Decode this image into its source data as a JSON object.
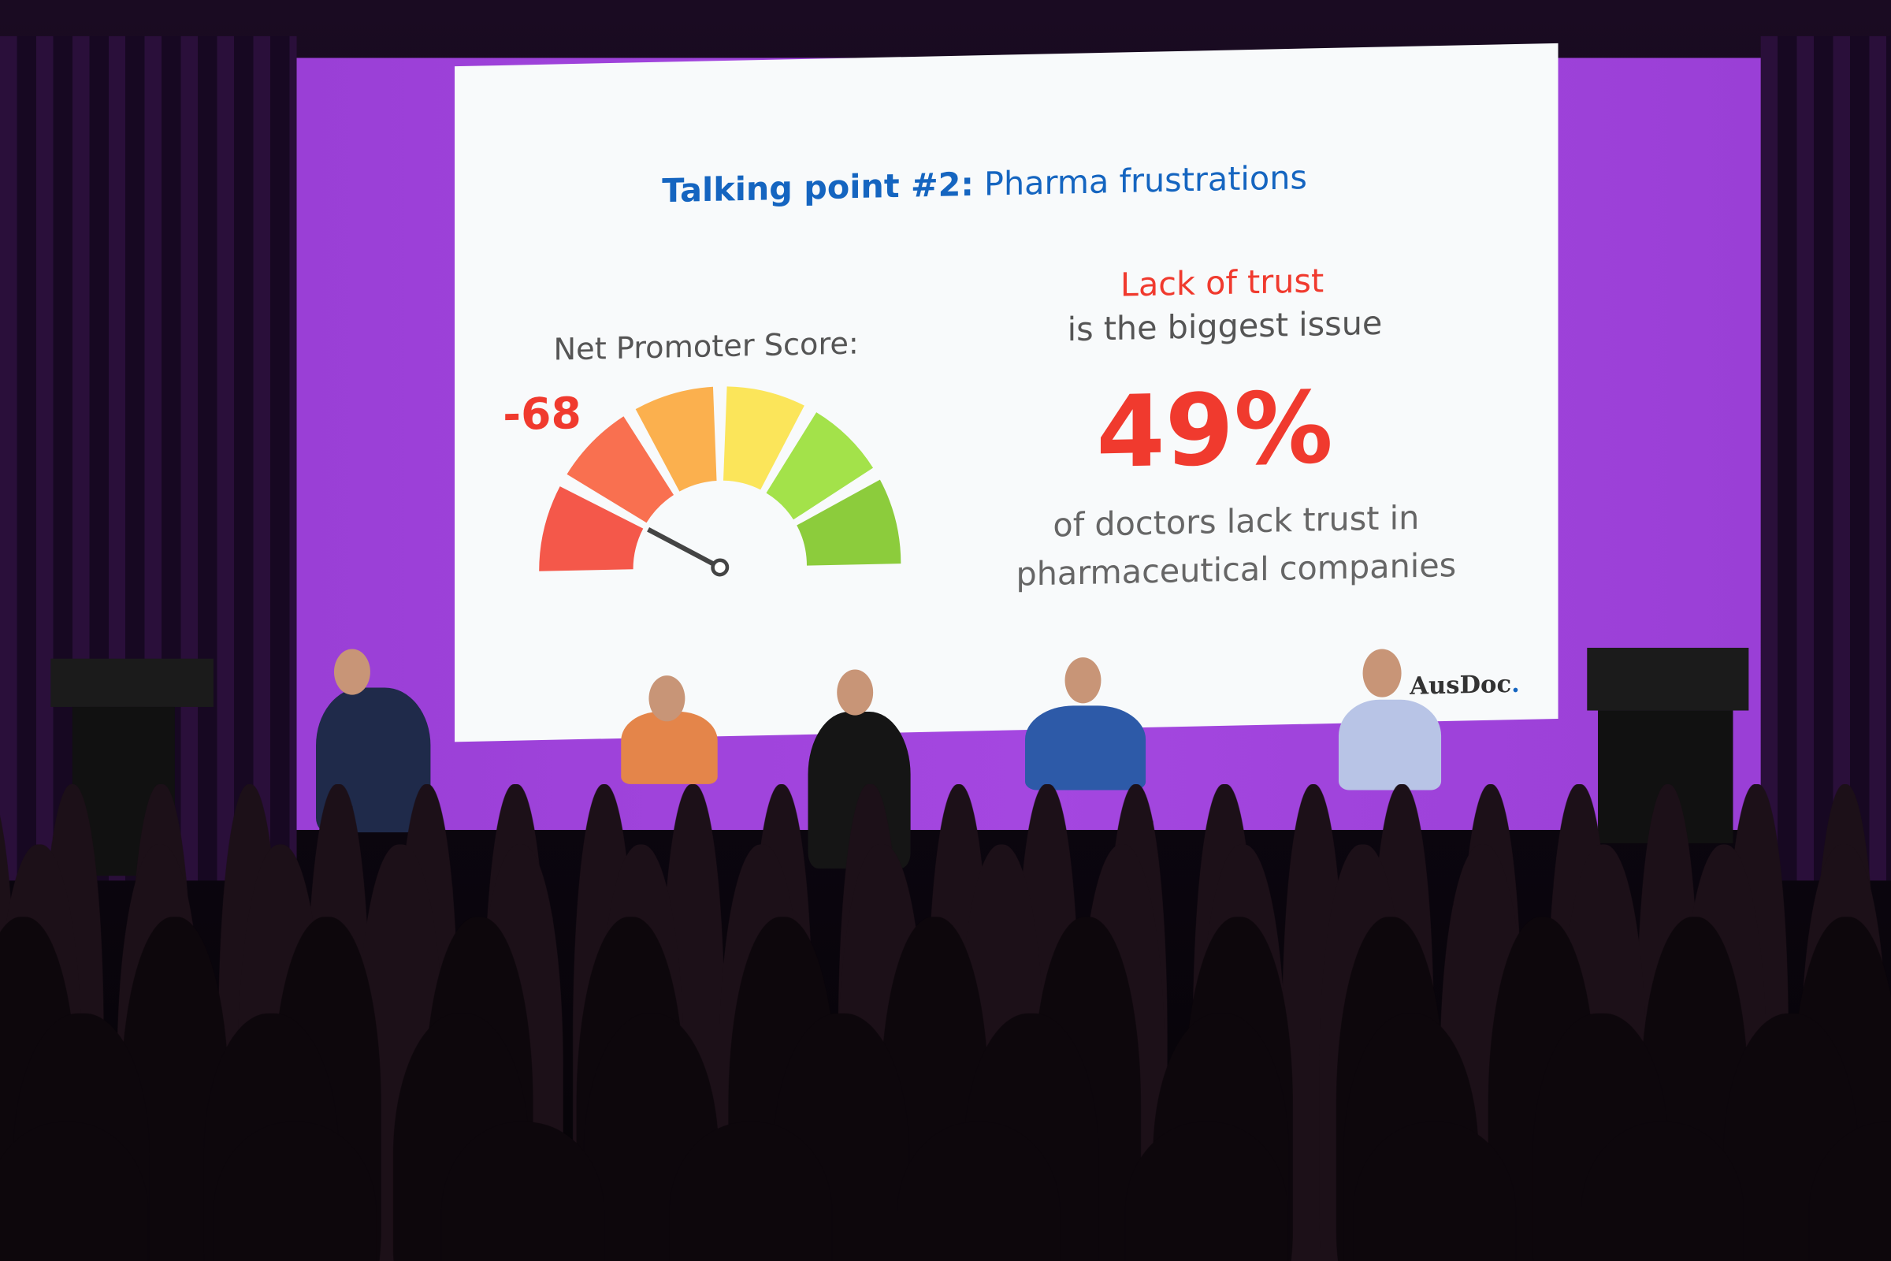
{
  "slide": {
    "title_bold": "Talking point #2:",
    "title_rest": " Pharma frustrations",
    "nps_label": "Net Promoter Score:",
    "nps_value": "-68",
    "headline_red": "Lack of trust",
    "headline_rest": "is the biggest issue",
    "big_stat": "49%",
    "stat_line1": "of doctors lack trust in",
    "stat_line2": "pharmaceutical companies",
    "logo": "AusDoc",
    "logo_dot": "."
  },
  "gauge": {
    "segment_colors": [
      "#f4584a",
      "#f97050",
      "#fbb04e",
      "#fbe55a",
      "#a3e24a",
      "#8ccc3c"
    ],
    "needle_value": -68,
    "range": [
      -100,
      100
    ]
  },
  "colors": {
    "title_blue": "#1565c0",
    "accent_red": "#f03a2e",
    "stage_purple": "#a447e0"
  }
}
